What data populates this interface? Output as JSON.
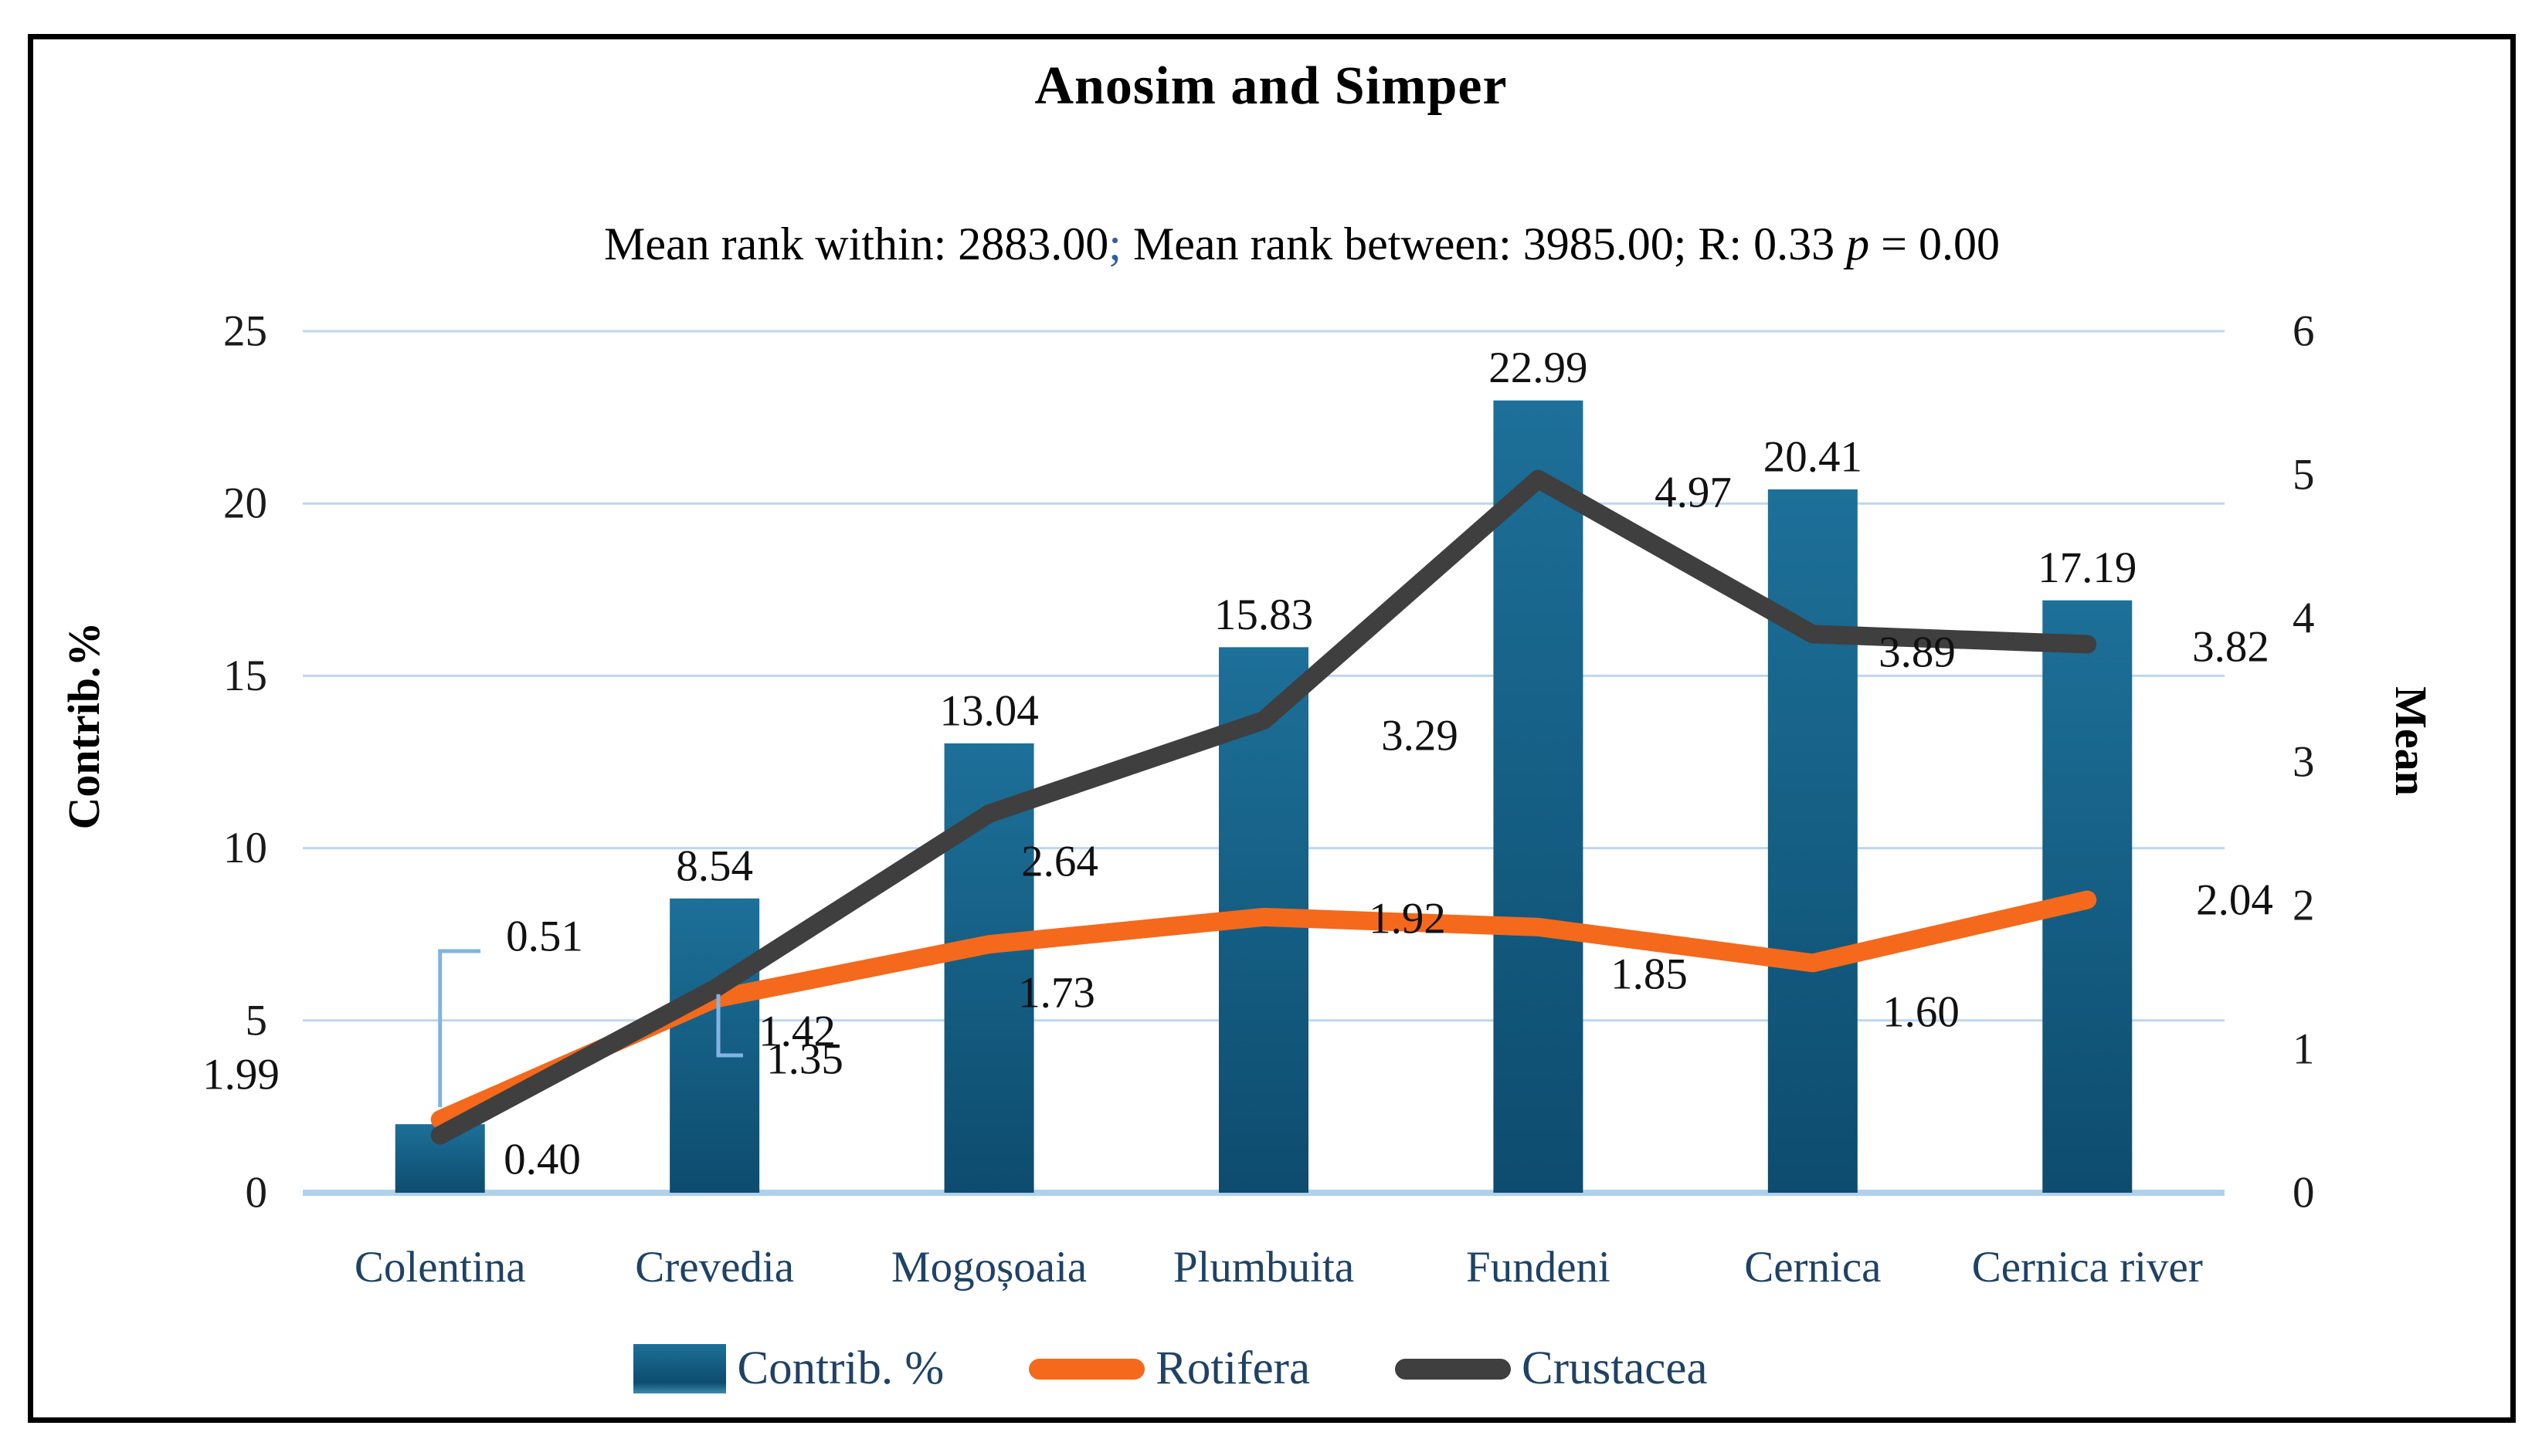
{
  "figure": {
    "title": "Anosim and Simper",
    "subtitle_part1": "Mean rank within: 2883.00",
    "subtitle_semicolon": ";",
    "subtitle_part2": " Mean rank between: 3985.00; R: 0.33 ",
    "subtitle_p": "p",
    "subtitle_part3": " = 0.00"
  },
  "chart_data": {
    "type": "bar",
    "subtype": "combo-bar-line",
    "title": "Anosim and Simper",
    "subtitle": "Mean rank within: 2883.00; Mean rank between: 3985.00; R: 0.33 p = 0.00",
    "categories": [
      "Colentina",
      "Crevedia",
      "Mogoșoaia",
      "Plumbuita",
      "Fundeni",
      "Cernica",
      "Cernica river"
    ],
    "series": [
      {
        "name": "Contrib. %",
        "type": "bar",
        "axis": "left",
        "values": [
          1.99,
          8.54,
          13.04,
          15.83,
          22.99,
          20.41,
          17.19
        ]
      },
      {
        "name": "Rotifera",
        "type": "line",
        "axis": "right",
        "values": [
          0.51,
          1.35,
          1.73,
          1.92,
          1.85,
          1.6,
          2.04
        ]
      },
      {
        "name": "Crustacea",
        "type": "line",
        "axis": "right",
        "values": [
          0.4,
          1.42,
          2.64,
          3.29,
          4.97,
          3.89,
          3.82
        ]
      }
    ],
    "left_axis": {
      "title": "Contrib.%",
      "min": 0,
      "max": 25,
      "ticks": [
        0,
        5,
        10,
        15,
        20,
        25
      ]
    },
    "right_axis": {
      "title": "Mean",
      "min": 0,
      "max": 6,
      "ticks": [
        0,
        1,
        2,
        3,
        4,
        5,
        6
      ]
    },
    "gridlines": true,
    "legend_position": "bottom",
    "colors": {
      "bar_top": "#1d7099",
      "bar_bottom": "#0d4c6e",
      "rotifera": "#f4691c",
      "crustacea": "#3f3f3f",
      "gridline": "#bdd7ee",
      "baseline": "#afd1ee",
      "leader_line": "#7fb4e4",
      "category_text": "#1f4266",
      "value_text": "#111111"
    }
  }
}
